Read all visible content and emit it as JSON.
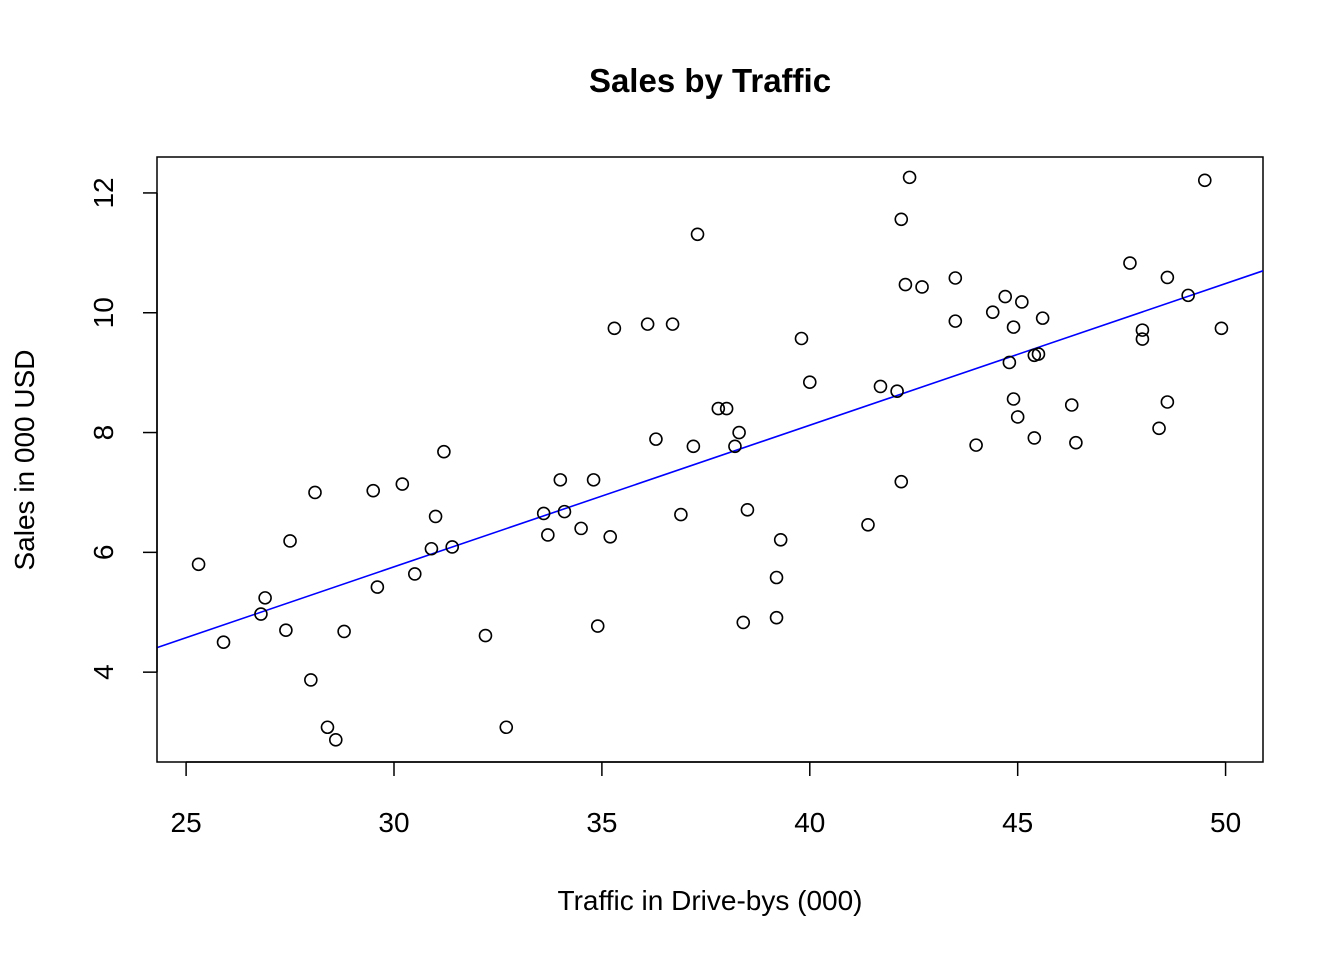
{
  "chart_data": {
    "type": "scatter",
    "title": "Sales by Traffic",
    "xlabel": "Traffic in Drive-bys (000)",
    "ylabel": "Sales in 000 USD",
    "xlim": [
      24.3,
      50.9
    ],
    "ylim": [
      2.5,
      12.6
    ],
    "x_ticks": [
      25,
      30,
      35,
      40,
      45,
      50
    ],
    "y_ticks": [
      4,
      6,
      8,
      10,
      12
    ],
    "grid": false,
    "legend": "none",
    "point_color": "#000000",
    "fit_line": {
      "color": "#0000ff",
      "x": [
        24.3,
        50.9
      ],
      "y": [
        4.41,
        10.7
      ]
    },
    "points": [
      {
        "x": 25.3,
        "y": 5.8
      },
      {
        "x": 25.9,
        "y": 4.5
      },
      {
        "x": 26.8,
        "y": 4.97
      },
      {
        "x": 26.9,
        "y": 5.24
      },
      {
        "x": 27.4,
        "y": 4.7
      },
      {
        "x": 27.5,
        "y": 6.19
      },
      {
        "x": 28.0,
        "y": 3.87
      },
      {
        "x": 28.1,
        "y": 7.0
      },
      {
        "x": 28.4,
        "y": 3.08
      },
      {
        "x": 28.6,
        "y": 2.87
      },
      {
        "x": 28.8,
        "y": 4.68
      },
      {
        "x": 29.5,
        "y": 7.03
      },
      {
        "x": 29.6,
        "y": 5.42
      },
      {
        "x": 30.2,
        "y": 7.14
      },
      {
        "x": 30.5,
        "y": 5.64
      },
      {
        "x": 30.9,
        "y": 6.06
      },
      {
        "x": 31.0,
        "y": 6.6
      },
      {
        "x": 31.2,
        "y": 7.68
      },
      {
        "x": 31.4,
        "y": 6.09
      },
      {
        "x": 32.2,
        "y": 4.61
      },
      {
        "x": 32.7,
        "y": 3.08
      },
      {
        "x": 33.6,
        "y": 6.65
      },
      {
        "x": 33.7,
        "y": 6.29
      },
      {
        "x": 34.0,
        "y": 7.21
      },
      {
        "x": 34.1,
        "y": 6.68
      },
      {
        "x": 34.5,
        "y": 6.4
      },
      {
        "x": 34.8,
        "y": 7.21
      },
      {
        "x": 34.9,
        "y": 4.77
      },
      {
        "x": 35.2,
        "y": 6.26
      },
      {
        "x": 35.3,
        "y": 9.74
      },
      {
        "x": 36.1,
        "y": 9.81
      },
      {
        "x": 36.3,
        "y": 7.89
      },
      {
        "x": 36.7,
        "y": 9.81
      },
      {
        "x": 36.9,
        "y": 6.63
      },
      {
        "x": 37.2,
        "y": 7.77
      },
      {
        "x": 37.3,
        "y": 11.31
      },
      {
        "x": 37.8,
        "y": 8.4
      },
      {
        "x": 38.0,
        "y": 8.4
      },
      {
        "x": 38.2,
        "y": 7.77
      },
      {
        "x": 38.3,
        "y": 8.0
      },
      {
        "x": 38.4,
        "y": 4.83
      },
      {
        "x": 38.5,
        "y": 6.71
      },
      {
        "x": 39.2,
        "y": 4.91
      },
      {
        "x": 39.2,
        "y": 5.58
      },
      {
        "x": 39.3,
        "y": 6.21
      },
      {
        "x": 39.8,
        "y": 9.57
      },
      {
        "x": 40.0,
        "y": 8.84
      },
      {
        "x": 41.4,
        "y": 6.46
      },
      {
        "x": 41.7,
        "y": 8.77
      },
      {
        "x": 42.1,
        "y": 8.69
      },
      {
        "x": 42.2,
        "y": 7.18
      },
      {
        "x": 42.2,
        "y": 11.56
      },
      {
        "x": 42.3,
        "y": 10.47
      },
      {
        "x": 42.4,
        "y": 12.26
      },
      {
        "x": 42.7,
        "y": 10.43
      },
      {
        "x": 43.5,
        "y": 10.58
      },
      {
        "x": 43.5,
        "y": 9.86
      },
      {
        "x": 44.0,
        "y": 7.79
      },
      {
        "x": 44.4,
        "y": 10.01
      },
      {
        "x": 44.7,
        "y": 10.27
      },
      {
        "x": 44.8,
        "y": 9.17
      },
      {
        "x": 44.9,
        "y": 8.56
      },
      {
        "x": 44.9,
        "y": 9.76
      },
      {
        "x": 45.0,
        "y": 8.26
      },
      {
        "x": 45.1,
        "y": 10.18
      },
      {
        "x": 45.4,
        "y": 9.29
      },
      {
        "x": 45.4,
        "y": 7.91
      },
      {
        "x": 45.5,
        "y": 9.31
      },
      {
        "x": 45.6,
        "y": 9.91
      },
      {
        "x": 46.3,
        "y": 8.46
      },
      {
        "x": 46.4,
        "y": 7.83
      },
      {
        "x": 47.7,
        "y": 10.83
      },
      {
        "x": 48.0,
        "y": 9.71
      },
      {
        "x": 48.0,
        "y": 9.56
      },
      {
        "x": 48.4,
        "y": 8.07
      },
      {
        "x": 48.6,
        "y": 10.59
      },
      {
        "x": 48.6,
        "y": 8.51
      },
      {
        "x": 49.1,
        "y": 10.29
      },
      {
        "x": 49.5,
        "y": 12.21
      },
      {
        "x": 49.9,
        "y": 9.74
      }
    ]
  }
}
